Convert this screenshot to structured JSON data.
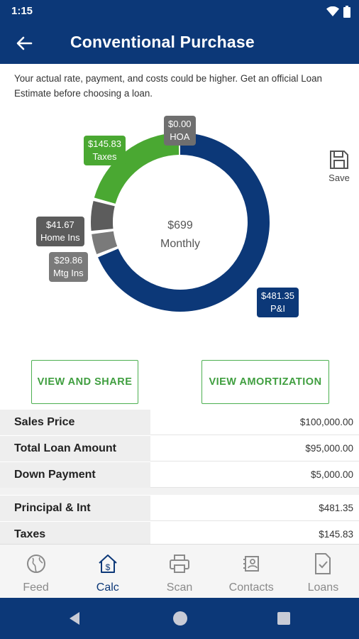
{
  "status_bar": {
    "time": "1:15"
  },
  "header": {
    "title": "Conventional Purchase",
    "back_icon": "arrow-left-icon"
  },
  "disclaimer": "Your actual rate, payment, and costs could be higher. Get an official Loan Estimate before choosing a loan.",
  "chart_data": {
    "type": "pie",
    "style": "donut",
    "center_value": "$699",
    "center_label": "Monthly",
    "categories": [
      "P&I",
      "Mtg Ins",
      "Home Ins",
      "Taxes",
      "HOA"
    ],
    "values": [
      481.35,
      29.86,
      41.67,
      145.83,
      0.0
    ],
    "value_labels": [
      "$481.35",
      "$29.86",
      "$41.67",
      "$145.83",
      "$0.00"
    ],
    "colors": [
      "#0c3878",
      "#7a7a7a",
      "#5c5c5c",
      "#4aa832",
      "#6f6f6f"
    ]
  },
  "save": {
    "label": "Save",
    "icon": "floppy-disk-icon"
  },
  "buttons": {
    "view_share": "VIEW AND SHARE",
    "view_amortization": "VIEW AMORTIZATION"
  },
  "summary": [
    {
      "label": "Sales Price",
      "value": "$100,000.00"
    },
    {
      "label": "Total Loan Amount",
      "value": "$95,000.00"
    },
    {
      "label": "Down Payment",
      "value": "$5,000.00"
    },
    {
      "label": "Principal & Int",
      "value": "$481.35"
    },
    {
      "label": "Taxes",
      "value": "$145.83"
    }
  ],
  "nav": [
    {
      "label": "Feed",
      "icon": "globe-icon"
    },
    {
      "label": "Calc",
      "icon": "house-dollar-icon",
      "active": true
    },
    {
      "label": "Scan",
      "icon": "printer-icon"
    },
    {
      "label": "Contacts",
      "icon": "contacts-icon"
    },
    {
      "label": "Loans",
      "icon": "document-check-icon"
    }
  ],
  "colors": {
    "primary": "#0c3878",
    "accent": "#4caf50",
    "taxes": "#4aa832"
  }
}
